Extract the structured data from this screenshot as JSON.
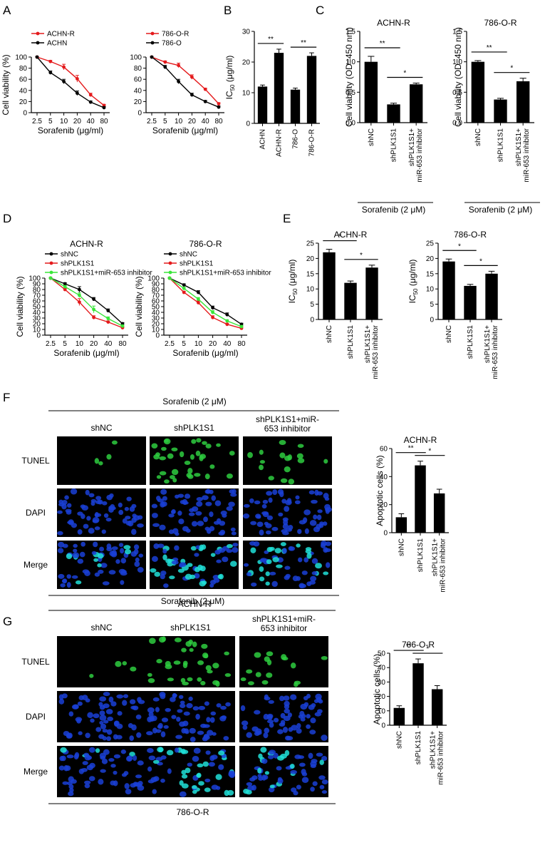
{
  "colors": {
    "black": "#000000",
    "red": "#e41a1c",
    "green": "#39e639",
    "tunel": "#2ecc40",
    "dapi": "#1a3fd6",
    "merge": "#20e0d8"
  },
  "panels": {
    "A": {
      "letter": "A"
    },
    "B": {
      "letter": "B"
    },
    "C": {
      "letter": "C"
    },
    "D": {
      "letter": "D"
    },
    "E": {
      "letter": "E"
    },
    "F": {
      "letter": "F"
    },
    "G": {
      "letter": "G"
    }
  },
  "chart_data": [
    {
      "id": "A1",
      "type": "line",
      "title": "",
      "xlabel": "Sorafenib (μg/ml)",
      "ylabel": "Cell viability (%)",
      "categories": [
        "2.5",
        "5",
        "10",
        "20",
        "40",
        "80"
      ],
      "ylim": [
        0,
        100
      ],
      "yticks": [
        0,
        20,
        40,
        60,
        80,
        100
      ],
      "legend": "top-left",
      "series": [
        {
          "name": "ACHN-R",
          "color": "#e41a1c",
          "values": [
            100,
            92,
            82,
            61,
            32,
            13
          ],
          "err": [
            1,
            2,
            5,
            6,
            3,
            2
          ]
        },
        {
          "name": "ACHN",
          "color": "#000000",
          "values": [
            100,
            72,
            56,
            35,
            19,
            9
          ],
          "err": [
            1,
            3,
            4,
            4,
            2,
            2
          ]
        }
      ]
    },
    {
      "id": "A2",
      "type": "line",
      "title": "",
      "xlabel": "Sorafenib (μg/ml)",
      "ylabel": "",
      "categories": [
        "2.5",
        "5",
        "10",
        "20",
        "40",
        "80"
      ],
      "ylim": [
        0,
        100
      ],
      "yticks": [
        0,
        20,
        40,
        60,
        80,
        100
      ],
      "legend": "top-left",
      "series": [
        {
          "name": "786-O-R",
          "color": "#e41a1c",
          "values": [
            100,
            91,
            85,
            64,
            42,
            16
          ],
          "err": [
            1,
            2,
            4,
            4,
            2,
            2
          ]
        },
        {
          "name": "786-O",
          "color": "#000000",
          "values": [
            100,
            82,
            56,
            32,
            20,
            10
          ],
          "err": [
            1,
            3,
            4,
            3,
            2,
            2
          ]
        }
      ]
    },
    {
      "id": "B",
      "type": "bar",
      "title": "",
      "xlabel": "",
      "ylabel": "IC50 (μg/ml)",
      "categories": [
        "ACHN",
        "ACHN-R",
        "786-O",
        "786-O-R"
      ],
      "values": [
        12,
        23,
        11,
        22
      ],
      "err": [
        0.5,
        1.2,
        0.5,
        1
      ],
      "ylim": [
        0,
        30
      ],
      "yticks": [
        0,
        10,
        20,
        30
      ],
      "sig": [
        {
          "from": 0,
          "to": 1,
          "label": "**"
        },
        {
          "from": 2,
          "to": 3,
          "label": "**"
        }
      ]
    },
    {
      "id": "C1",
      "type": "bar",
      "title": "ACHN-R",
      "xlabel": "Sorafenib (2 μM)",
      "ylabel": "Cell viability (OD=450 nm)",
      "categories": [
        "shNC",
        "shPLK1S1",
        "shPLK1S1+ miR-653 inhibitor"
      ],
      "values": [
        1.0,
        0.3,
        0.63
      ],
      "err": [
        0.09,
        0.02,
        0.02
      ],
      "ylim": [
        0,
        1.5
      ],
      "yticks": [
        "0.0",
        "0.5",
        "1.0",
        "1.5"
      ],
      "sig": [
        {
          "from": 0,
          "to": 1,
          "label": "**"
        },
        {
          "from": 1,
          "to": 2,
          "label": "*"
        }
      ]
    },
    {
      "id": "C2",
      "type": "bar",
      "title": "786-O-R",
      "xlabel": "Sorafenib (2 μM)",
      "ylabel": "Cell viability (OD=450 nm)",
      "categories": [
        "shNC",
        "shPLK1S1",
        "shPLK1S1+ miR-653 inhibitor"
      ],
      "values": [
        1.0,
        0.38,
        0.68
      ],
      "err": [
        0.02,
        0.02,
        0.05
      ],
      "ylim": [
        0,
        1.5
      ],
      "yticks": [
        "0.0",
        "0.5",
        "1.0",
        "1.5"
      ],
      "sig": [
        {
          "from": 0,
          "to": 1,
          "label": "**"
        },
        {
          "from": 1,
          "to": 2,
          "label": "*"
        }
      ]
    },
    {
      "id": "D1",
      "type": "line",
      "title": "ACHN-R",
      "xlabel": "Sorafenib (μg/ml)",
      "ylabel": "Cell viability (%)",
      "categories": [
        "2.5",
        "5",
        "10",
        "20",
        "40",
        "80"
      ],
      "ylim": [
        0,
        100
      ],
      "yticks": [
        0,
        10,
        20,
        30,
        40,
        50,
        60,
        70,
        80,
        90,
        100
      ],
      "legend": "top-left",
      "series": [
        {
          "name": "shNC",
          "color": "#000000",
          "values": [
            100,
            90,
            80,
            63,
            43,
            20
          ],
          "err": [
            1,
            2,
            5,
            3,
            3,
            2
          ]
        },
        {
          "name": "shPLK1S1",
          "color": "#e41a1c",
          "values": [
            100,
            80,
            58,
            31,
            23,
            13
          ],
          "err": [
            1,
            2,
            6,
            3,
            2,
            2
          ]
        },
        {
          "name": "shPLK1S1+miR-653 inhibitor",
          "color": "#39e639",
          "values": [
            100,
            85,
            70,
            45,
            29,
            16
          ],
          "err": [
            1,
            2,
            4,
            6,
            3,
            2
          ]
        }
      ]
    },
    {
      "id": "D2",
      "type": "line",
      "title": "786-O-R",
      "xlabel": "Sorafenib (μg/ml)",
      "ylabel": "Cell viability (%)",
      "categories": [
        "2.5",
        "5",
        "10",
        "20",
        "40",
        "80"
      ],
      "ylim": [
        0,
        100
      ],
      "yticks": [
        0,
        10,
        20,
        30,
        40,
        50,
        60,
        70,
        80,
        90,
        100
      ],
      "legend": "top-left",
      "series": [
        {
          "name": "shNC",
          "color": "#000000",
          "values": [
            100,
            88,
            75,
            48,
            36,
            19
          ],
          "err": [
            1,
            2,
            3,
            3,
            3,
            2
          ]
        },
        {
          "name": "shPLK1S1",
          "color": "#e41a1c",
          "values": [
            100,
            75,
            57,
            31,
            19,
            12
          ],
          "err": [
            1,
            2,
            3,
            3,
            2,
            2
          ]
        },
        {
          "name": "shPLK1S1+miR-653 inhibitor",
          "color": "#39e639",
          "values": [
            100,
            82,
            63,
            40,
            25,
            15
          ],
          "err": [
            1,
            2,
            3,
            3,
            2,
            2
          ]
        }
      ]
    },
    {
      "id": "E1",
      "type": "bar",
      "title": "ACHN-R",
      "xlabel": "",
      "ylabel": "IC50 (μg/ml)",
      "categories": [
        "shNC",
        "shPLK1S1",
        "shPLK1S1+ miR-653 inhibitor"
      ],
      "values": [
        22,
        12,
        17
      ],
      "err": [
        1,
        0.6,
        0.8
      ],
      "ylim": [
        0,
        25
      ],
      "yticks": [
        0,
        5,
        10,
        15,
        20,
        25
      ],
      "sig": [
        {
          "from": 0,
          "to": 1,
          "label": "*"
        },
        {
          "from": 1,
          "to": 2,
          "label": "*"
        }
      ]
    },
    {
      "id": "E2",
      "type": "bar",
      "title": "786-O-R",
      "xlabel": "",
      "ylabel": "IC50 (μg/ml)",
      "categories": [
        "shNC",
        "shPLK1S1",
        "shPLK1S1+ miR-653 inhibitor"
      ],
      "values": [
        19,
        11,
        15
      ],
      "err": [
        0.8,
        0.5,
        0.8
      ],
      "ylim": [
        0,
        25
      ],
      "yticks": [
        0,
        5,
        10,
        15,
        20,
        25
      ],
      "sig": [
        {
          "from": 0,
          "to": 1,
          "label": "*"
        },
        {
          "from": 1,
          "to": 2,
          "label": "*"
        }
      ]
    },
    {
      "id": "F",
      "type": "bar",
      "title": "ACHN-R",
      "xlabel": "",
      "ylabel": "Apoptotic cells (%)",
      "categories": [
        "shNC",
        "shPLK1S1",
        "shPLK1S1+ miR-653 inhibitor"
      ],
      "values": [
        11,
        48,
        28
      ],
      "err": [
        2.5,
        3,
        3
      ],
      "ylim": [
        0,
        60
      ],
      "yticks": [
        0,
        20,
        40,
        60
      ],
      "sig": [
        {
          "from": 0,
          "to": 1,
          "label": "**"
        },
        {
          "from": 1,
          "to": 2,
          "label": "*"
        }
      ]
    },
    {
      "id": "G",
      "type": "bar",
      "title": "786-O-R",
      "xlabel": "",
      "ylabel": "Apoptotic cells (%)",
      "categories": [
        "shNC",
        "shPLK1S1",
        "shPLK1S1+ miR-653 inhibitor"
      ],
      "values": [
        12,
        43,
        25
      ],
      "err": [
        1.5,
        3,
        2.5
      ],
      "ylim": [
        0,
        50
      ],
      "yticks": [
        0,
        10,
        20,
        30,
        40,
        50
      ],
      "sig": [
        {
          "from": 0,
          "to": 1,
          "label": "**"
        },
        {
          "from": 1,
          "to": 2,
          "label": "*"
        }
      ]
    }
  ],
  "micrographs": {
    "F": {
      "treatment": "Sorafenib (2 μM)",
      "cell_line": "ACHN-R",
      "columns": [
        "shNC",
        "shPLK1S1",
        "shPLK1S1+miR-",
        "653 inhibitor"
      ],
      "rows": [
        "TUNEL",
        "DAPI",
        "Merge"
      ]
    },
    "G": {
      "treatment": "Sorafenib (2 μM)",
      "cell_line": "786-O-R",
      "columns": [
        "shNC",
        "shPLK1S1",
        "shPLK1S1+miR-",
        "653 inhibitor"
      ],
      "rows": [
        "TUNEL",
        "DAPI",
        "Merge"
      ]
    }
  }
}
